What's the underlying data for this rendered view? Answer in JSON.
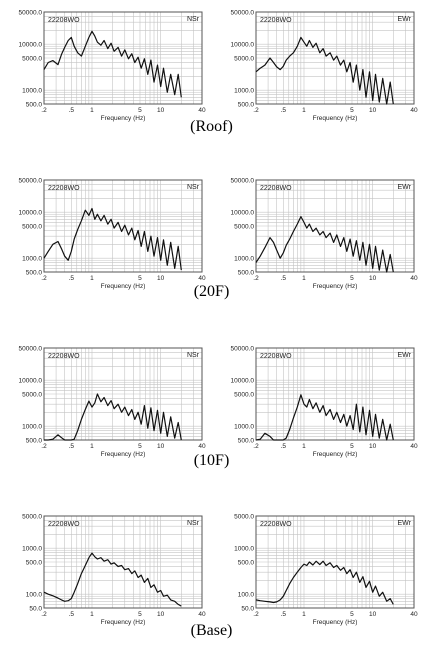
{
  "figure": {
    "captions": [
      "(Roof)",
      "(20F)",
      "(10F)",
      "(Base)"
    ]
  },
  "chart_data": [
    {
      "type": "line",
      "row": "Roof",
      "panel": "left",
      "title": "NSr",
      "annotation": "22208WO",
      "xlabel": "Frequency (Hz)",
      "ylabel": "",
      "xscale": "log",
      "yscale": "log",
      "xlim": [
        0.2,
        40
      ],
      "ylim": [
        500,
        50000
      ],
      "xticks": [
        0.2,
        0.5,
        1,
        5,
        10,
        40
      ],
      "xtick_labels": [
        ".2",
        ".5",
        "1",
        "5",
        "10",
        "40"
      ],
      "yticks": [
        500,
        1000,
        5000,
        10000,
        50000
      ],
      "ytick_labels": [
        "500.0",
        "1000.0",
        "5000.0",
        "10000.0",
        "50000.0"
      ],
      "series": [
        {
          "x": [
            0.2,
            0.23,
            0.27,
            0.32,
            0.36,
            0.4,
            0.45,
            0.5,
            0.55,
            0.62,
            0.7,
            0.8,
            0.9,
            1.0,
            1.1,
            1.2,
            1.35,
            1.5,
            1.7,
            1.9,
            2.1,
            2.4,
            2.7,
            3.0,
            3.4,
            3.8,
            4.2,
            4.7,
            5.2,
            5.8,
            6.5,
            7.2,
            8.0,
            9.0,
            10.0,
            11.0,
            12.5,
            14.0,
            16.0,
            18.0,
            20.0
          ],
          "y": [
            2800,
            4000,
            4400,
            3600,
            6000,
            8500,
            12000,
            14000,
            9000,
            6500,
            5500,
            9000,
            14000,
            19000,
            15000,
            11000,
            9500,
            12000,
            8000,
            10500,
            7000,
            8500,
            5500,
            7500,
            4800,
            6200,
            4000,
            5200,
            3000,
            4800,
            2200,
            4500,
            1500,
            3500,
            1200,
            3000,
            900,
            2200,
            800,
            2200,
            700
          ]
        }
      ],
      "grid": true
    },
    {
      "type": "line",
      "row": "Roof",
      "panel": "right",
      "title": "EWr",
      "annotation": "22208WO",
      "xlabel": "Frequency (Hz)",
      "ylabel": "",
      "xscale": "log",
      "yscale": "log",
      "xlim": [
        0.2,
        40
      ],
      "ylim": [
        500,
        50000
      ],
      "xticks": [
        0.2,
        0.5,
        1,
        5,
        10,
        40
      ],
      "xtick_labels": [
        ".2",
        ".5",
        "1",
        "5",
        "10",
        "40"
      ],
      "yticks": [
        500,
        1000,
        5000,
        10000,
        50000
      ],
      "ytick_labels": [
        "500.0",
        "1000.0",
        "5000.0",
        "10000.0",
        "50000.0"
      ],
      "series": [
        {
          "x": [
            0.2,
            0.23,
            0.27,
            0.32,
            0.36,
            0.4,
            0.45,
            0.5,
            0.55,
            0.62,
            0.7,
            0.8,
            0.9,
            1.0,
            1.1,
            1.2,
            1.35,
            1.5,
            1.7,
            1.9,
            2.1,
            2.4,
            2.7,
            3.0,
            3.4,
            3.8,
            4.2,
            4.7,
            5.2,
            5.8,
            6.5,
            7.2,
            8.0,
            9.0,
            10.0,
            11.0,
            12.5,
            14.0,
            16.0,
            18.0,
            20.0
          ],
          "y": [
            2500,
            3000,
            3500,
            5000,
            4000,
            3200,
            2800,
            3300,
            4500,
            5500,
            6500,
            9000,
            14000,
            11000,
            9000,
            12000,
            8500,
            10500,
            6500,
            8000,
            5500,
            6500,
            4500,
            5500,
            3500,
            4500,
            2500,
            4000,
            1500,
            3500,
            1000,
            2800,
            700,
            2500,
            600,
            2200,
            550,
            1800,
            500,
            1500,
            500
          ]
        }
      ],
      "grid": true
    },
    {
      "type": "line",
      "row": "20F",
      "panel": "left",
      "title": "NSr",
      "annotation": "22208WO",
      "xlabel": "Frequency (Hz)",
      "ylabel": "",
      "xscale": "log",
      "yscale": "log",
      "xlim": [
        0.2,
        40
      ],
      "ylim": [
        500,
        50000
      ],
      "xticks": [
        0.2,
        0.5,
        1,
        5,
        10,
        40
      ],
      "xtick_labels": [
        ".2",
        ".5",
        "1",
        "5",
        "10",
        "40"
      ],
      "yticks": [
        500,
        1000,
        5000,
        10000,
        50000
      ],
      "ytick_labels": [
        "500.0",
        "1000.0",
        "5000.0",
        "10000.0",
        "50000.0"
      ],
      "series": [
        {
          "x": [
            0.2,
            0.23,
            0.27,
            0.32,
            0.36,
            0.4,
            0.45,
            0.5,
            0.55,
            0.62,
            0.7,
            0.8,
            0.9,
            1.0,
            1.1,
            1.2,
            1.35,
            1.5,
            1.7,
            1.9,
            2.1,
            2.4,
            2.7,
            3.0,
            3.4,
            3.8,
            4.2,
            4.7,
            5.2,
            5.8,
            6.5,
            7.2,
            8.0,
            9.0,
            10.0,
            11.0,
            12.5,
            14.0,
            16.0,
            18.0,
            20.0
          ],
          "y": [
            1000,
            1400,
            2000,
            2300,
            1600,
            1100,
            900,
            1400,
            2600,
            4200,
            6500,
            11000,
            8500,
            12000,
            7000,
            9000,
            6500,
            8500,
            5500,
            7000,
            4500,
            6000,
            3800,
            5200,
            3200,
            4500,
            2500,
            4000,
            1800,
            3800,
            1400,
            3000,
            1100,
            2800,
            900,
            2500,
            700,
            2200,
            600,
            1800,
            550
          ]
        }
      ],
      "grid": true
    },
    {
      "type": "line",
      "row": "20F",
      "panel": "right",
      "title": "EWr",
      "annotation": "22208WO",
      "xlabel": "Frequency (Hz)",
      "ylabel": "",
      "xscale": "log",
      "yscale": "log",
      "xlim": [
        0.2,
        40
      ],
      "ylim": [
        500,
        50000
      ],
      "xticks": [
        0.2,
        0.5,
        1,
        5,
        10,
        40
      ],
      "xtick_labels": [
        ".2",
        ".5",
        "1",
        "5",
        "10",
        "40"
      ],
      "yticks": [
        500,
        1000,
        5000,
        10000,
        50000
      ],
      "ytick_labels": [
        "500.0",
        "1000.0",
        "5000.0",
        "10000.0",
        "50000.0"
      ],
      "series": [
        {
          "x": [
            0.2,
            0.23,
            0.27,
            0.32,
            0.36,
            0.4,
            0.45,
            0.5,
            0.55,
            0.62,
            0.7,
            0.8,
            0.9,
            1.0,
            1.1,
            1.2,
            1.35,
            1.5,
            1.7,
            1.9,
            2.1,
            2.4,
            2.7,
            3.0,
            3.4,
            3.8,
            4.2,
            4.7,
            5.2,
            5.8,
            6.5,
            7.2,
            8.0,
            9.0,
            10.0,
            11.0,
            12.5,
            14.0,
            16.0,
            18.0,
            20.0
          ],
          "y": [
            800,
            1100,
            1700,
            2800,
            2200,
            1500,
            1000,
            1300,
            1900,
            2600,
            3800,
            5500,
            8000,
            6000,
            4500,
            5500,
            3800,
            4500,
            3200,
            3800,
            2800,
            3500,
            2200,
            3200,
            1800,
            2800,
            1400,
            2600,
            1100,
            2400,
            900,
            2200,
            700,
            2000,
            600,
            1800,
            550,
            1500,
            500,
            1200,
            500
          ]
        }
      ],
      "grid": true
    },
    {
      "type": "line",
      "row": "10F",
      "panel": "left",
      "title": "NSr",
      "annotation": "22208WO",
      "xlabel": "Frequency (Hz)",
      "ylabel": "",
      "xscale": "log",
      "yscale": "log",
      "xlim": [
        0.2,
        40
      ],
      "ylim": [
        500,
        50000
      ],
      "xticks": [
        0.2,
        0.5,
        1,
        5,
        10,
        40
      ],
      "xtick_labels": [
        ".2",
        ".5",
        "1",
        "5",
        "10",
        "40"
      ],
      "yticks": [
        500,
        1000,
        5000,
        10000,
        50000
      ],
      "ytick_labels": [
        "500.0",
        "1000.0",
        "5000.0",
        "10000.0",
        "50000.0"
      ],
      "series": [
        {
          "x": [
            0.2,
            0.23,
            0.27,
            0.32,
            0.36,
            0.4,
            0.45,
            0.5,
            0.55,
            0.62,
            0.7,
            0.8,
            0.9,
            1.0,
            1.1,
            1.2,
            1.35,
            1.5,
            1.7,
            1.9,
            2.1,
            2.4,
            2.7,
            3.0,
            3.4,
            3.8,
            4.2,
            4.7,
            5.2,
            5.8,
            6.5,
            7.2,
            8.0,
            9.0,
            10.0,
            11.0,
            12.5,
            14.0,
            16.0,
            18.0,
            20.0
          ],
          "y": [
            500,
            500,
            520,
            650,
            560,
            500,
            500,
            500,
            520,
            800,
            1400,
            2300,
            3500,
            2600,
            3200,
            5000,
            3400,
            4200,
            2800,
            3600,
            2400,
            3000,
            2000,
            2600,
            1700,
            2300,
            1400,
            2000,
            1100,
            2800,
            900,
            2500,
            800,
            2200,
            700,
            2000,
            600,
            1600,
            550,
            1200,
            500
          ]
        }
      ],
      "grid": true
    },
    {
      "type": "line",
      "row": "10F",
      "panel": "right",
      "title": "EWr",
      "annotation": "22208WO",
      "xlabel": "Frequency (Hz)",
      "ylabel": "",
      "xscale": "log",
      "yscale": "log",
      "xlim": [
        0.2,
        40
      ],
      "ylim": [
        500,
        50000
      ],
      "xticks": [
        0.2,
        0.5,
        1,
        5,
        10,
        40
      ],
      "xtick_labels": [
        ".2",
        ".5",
        "1",
        "5",
        "10",
        "40"
      ],
      "yticks": [
        500,
        1000,
        5000,
        10000,
        50000
      ],
      "ytick_labels": [
        "500.0",
        "1000.0",
        "5000.0",
        "10000.0",
        "50000.0"
      ],
      "series": [
        {
          "x": [
            0.2,
            0.23,
            0.27,
            0.32,
            0.36,
            0.4,
            0.45,
            0.5,
            0.55,
            0.62,
            0.7,
            0.8,
            0.9,
            1.0,
            1.1,
            1.2,
            1.35,
            1.5,
            1.7,
            1.9,
            2.1,
            2.4,
            2.7,
            3.0,
            3.4,
            3.8,
            4.2,
            4.7,
            5.2,
            5.8,
            6.5,
            7.2,
            8.0,
            9.0,
            10.0,
            11.0,
            12.5,
            14.0,
            16.0,
            18.0,
            20.0
          ],
          "y": [
            500,
            520,
            700,
            600,
            500,
            500,
            500,
            500,
            550,
            850,
            1500,
            2600,
            4800,
            3000,
            2600,
            3800,
            2400,
            3200,
            2000,
            2800,
            1700,
            2300,
            1400,
            2000,
            1200,
            1800,
            1000,
            1700,
            850,
            3000,
            750,
            2600,
            650,
            2200,
            600,
            1800,
            550,
            1400,
            500,
            1100,
            500
          ]
        }
      ],
      "grid": true
    },
    {
      "type": "line",
      "row": "Base",
      "panel": "left",
      "title": "NSr",
      "annotation": "22208WO",
      "xlabel": "Frequency (Hz)",
      "ylabel": "",
      "xscale": "log",
      "yscale": "log",
      "xlim": [
        0.2,
        40
      ],
      "ylim": [
        50,
        5000
      ],
      "xticks": [
        0.2,
        0.5,
        1,
        5,
        10,
        40
      ],
      "xtick_labels": [
        ".2",
        ".5",
        "1",
        "5",
        "10",
        "40"
      ],
      "yticks": [
        50,
        100,
        500,
        1000,
        5000
      ],
      "ytick_labels": [
        "50.0",
        "100.0",
        "500.0",
        "1000.0",
        "5000.0"
      ],
      "series": [
        {
          "x": [
            0.2,
            0.23,
            0.27,
            0.32,
            0.36,
            0.4,
            0.45,
            0.5,
            0.55,
            0.62,
            0.7,
            0.8,
            0.9,
            1.0,
            1.1,
            1.2,
            1.35,
            1.5,
            1.7,
            1.9,
            2.1,
            2.4,
            2.7,
            3.0,
            3.4,
            3.8,
            4.2,
            4.7,
            5.2,
            5.8,
            6.5,
            7.2,
            8.0,
            9.0,
            10.0,
            11.0,
            12.5,
            14.0,
            16.0,
            18.0,
            20.0
          ],
          "y": [
            110,
            100,
            92,
            82,
            75,
            70,
            72,
            80,
            110,
            170,
            280,
            420,
            620,
            780,
            650,
            580,
            620,
            520,
            560,
            450,
            480,
            400,
            420,
            340,
            360,
            280,
            320,
            230,
            260,
            180,
            220,
            140,
            160,
            110,
            120,
            90,
            95,
            75,
            70,
            60,
            55
          ]
        }
      ],
      "grid": true
    },
    {
      "type": "line",
      "row": "Base",
      "panel": "right",
      "title": "EWr",
      "annotation": "22208WO",
      "xlabel": "Frequency (Hz)",
      "ylabel": "",
      "xscale": "log",
      "yscale": "log",
      "xlim": [
        0.2,
        40
      ],
      "ylim": [
        50,
        5000
      ],
      "xticks": [
        0.2,
        0.5,
        1,
        5,
        10,
        40
      ],
      "xtick_labels": [
        ".2",
        ".5",
        "1",
        "5",
        "10",
        "40"
      ],
      "yticks": [
        50,
        100,
        500,
        1000,
        5000
      ],
      "ytick_labels": [
        "50.0",
        "100.0",
        "500.0",
        "1000.0",
        "5000.0"
      ],
      "series": [
        {
          "x": [
            0.2,
            0.23,
            0.27,
            0.32,
            0.36,
            0.4,
            0.45,
            0.5,
            0.55,
            0.62,
            0.7,
            0.8,
            0.9,
            1.0,
            1.1,
            1.2,
            1.35,
            1.5,
            1.7,
            1.9,
            2.1,
            2.4,
            2.7,
            3.0,
            3.4,
            3.8,
            4.2,
            4.7,
            5.2,
            5.8,
            6.5,
            7.2,
            8.0,
            9.0,
            10.0,
            11.0,
            12.5,
            14.0,
            16.0,
            18.0,
            20.0
          ],
          "y": [
            75,
            72,
            70,
            68,
            66,
            68,
            75,
            90,
            120,
            170,
            230,
            300,
            380,
            450,
            420,
            500,
            430,
            520,
            440,
            520,
            420,
            480,
            380,
            420,
            330,
            380,
            280,
            340,
            230,
            300,
            180,
            240,
            140,
            190,
            110,
            150,
            90,
            110,
            70,
            80,
            60
          ]
        }
      ],
      "grid": true
    }
  ]
}
